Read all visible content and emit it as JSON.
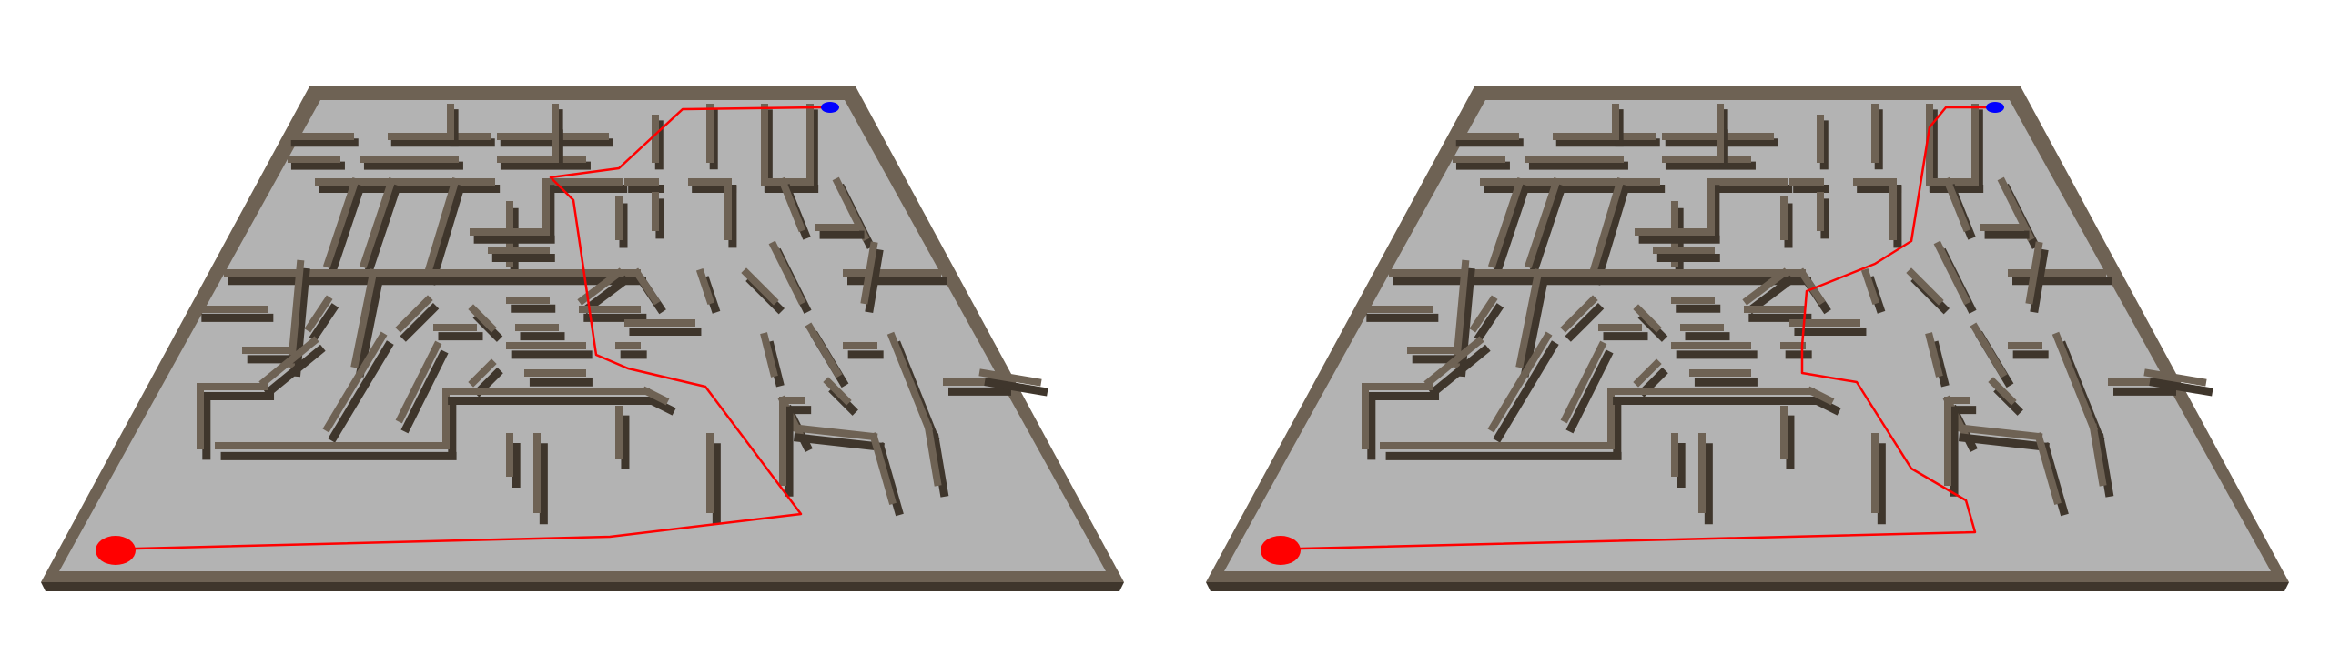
{
  "scene": {
    "description_visible_text": "",
    "colors": {
      "floor": "#b3b3b3",
      "wall_top": "#6e6254",
      "wall_side": "#3f362c",
      "wall_speck": "#8c7e6c",
      "start_marker": "#ff0000",
      "goal_marker": "#0000ff",
      "path": "#ff0000",
      "background": "#ffffff"
    }
  },
  "panels": [
    {
      "id": "left",
      "path_label": ""
    },
    {
      "id": "right",
      "path_label": ""
    }
  ]
}
